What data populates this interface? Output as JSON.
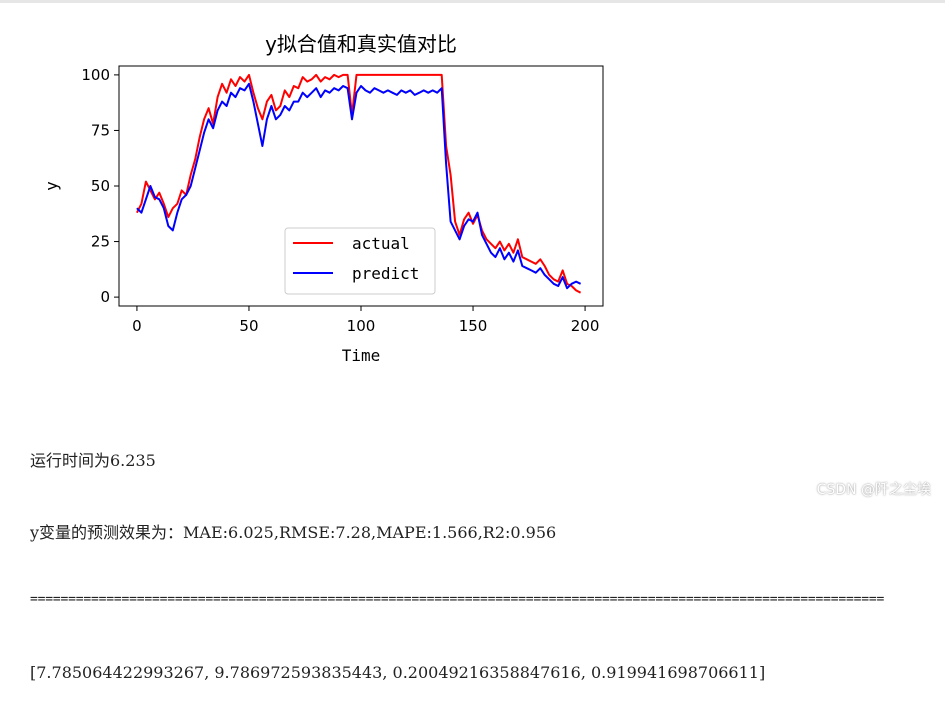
{
  "chart_data": {
    "type": "line",
    "title": "y拟合值和真实值对比",
    "xlabel": "Time",
    "ylabel": "y",
    "xlim": [
      -8,
      208
    ],
    "ylim": [
      -4,
      104
    ],
    "xticks": [
      0,
      50,
      100,
      150,
      200
    ],
    "yticks": [
      0,
      25,
      50,
      75,
      100
    ],
    "grid": false,
    "legend_position": "lower-center",
    "x": [
      0,
      2,
      4,
      6,
      8,
      10,
      12,
      14,
      16,
      18,
      20,
      22,
      24,
      26,
      28,
      30,
      32,
      34,
      36,
      38,
      40,
      42,
      44,
      46,
      48,
      50,
      52,
      54,
      56,
      58,
      60,
      62,
      64,
      66,
      68,
      70,
      72,
      74,
      76,
      78,
      80,
      82,
      84,
      86,
      88,
      90,
      92,
      94,
      96,
      98,
      100,
      102,
      104,
      106,
      108,
      110,
      112,
      114,
      116,
      118,
      120,
      122,
      124,
      126,
      128,
      130,
      132,
      134,
      136,
      138,
      140,
      142,
      144,
      146,
      148,
      150,
      152,
      154,
      156,
      158,
      160,
      162,
      164,
      166,
      168,
      170,
      172,
      174,
      176,
      178,
      180,
      182,
      184,
      186,
      188,
      190,
      192,
      194,
      196,
      198
    ],
    "series": [
      {
        "name": "actual",
        "color": "#ff0000",
        "values": [
          38,
          42,
          52,
          48,
          44,
          47,
          42,
          36,
          40,
          42,
          48,
          46,
          55,
          62,
          72,
          80,
          85,
          78,
          90,
          96,
          92,
          98,
          95,
          99,
          97,
          100,
          92,
          85,
          80,
          88,
          91,
          84,
          86,
          93,
          90,
          95,
          94,
          99,
          97,
          98,
          100,
          97,
          99,
          98,
          100,
          99,
          100,
          100,
          82,
          100,
          100,
          100,
          100,
          100,
          100,
          100,
          100,
          100,
          100,
          100,
          100,
          100,
          100,
          100,
          100,
          100,
          100,
          100,
          100,
          68,
          55,
          34,
          28,
          35,
          38,
          33,
          37,
          30,
          26,
          24,
          22,
          25,
          21,
          24,
          20,
          26,
          18,
          17,
          16,
          15,
          17,
          14,
          10,
          8,
          7,
          12,
          6,
          5,
          3,
          2
        ]
      },
      {
        "name": "predict",
        "color": "#0000ff",
        "values": [
          40,
          38,
          44,
          50,
          45,
          44,
          40,
          32,
          30,
          38,
          44,
          46,
          50,
          58,
          66,
          74,
          80,
          76,
          84,
          88,
          86,
          92,
          90,
          94,
          93,
          96,
          88,
          78,
          68,
          80,
          86,
          80,
          82,
          86,
          84,
          88,
          88,
          92,
          90,
          92,
          94,
          90,
          93,
          92,
          94,
          93,
          95,
          94,
          80,
          92,
          95,
          93,
          92,
          94,
          93,
          92,
          93,
          92,
          91,
          93,
          92,
          93,
          91,
          92,
          93,
          92,
          93,
          92,
          94,
          60,
          34,
          30,
          26,
          32,
          35,
          34,
          38,
          28,
          24,
          20,
          18,
          22,
          17,
          20,
          16,
          21,
          14,
          13,
          12,
          11,
          13,
          10,
          8,
          6,
          5,
          9,
          4,
          6,
          7,
          6
        ]
      }
    ]
  },
  "console": {
    "line1": "运行时间为6.235",
    "line2": "y变量的预测效果为：MAE:6.025,RMSE:7.28,MAPE:1.566,R2:0.956",
    "separator": "================================================================================================================",
    "line4": "[7.785064422993267, 9.786972593835443, 0.20049216358847616, 0.919941698706611]"
  },
  "watermark": "CSDN @阡之尘埃"
}
